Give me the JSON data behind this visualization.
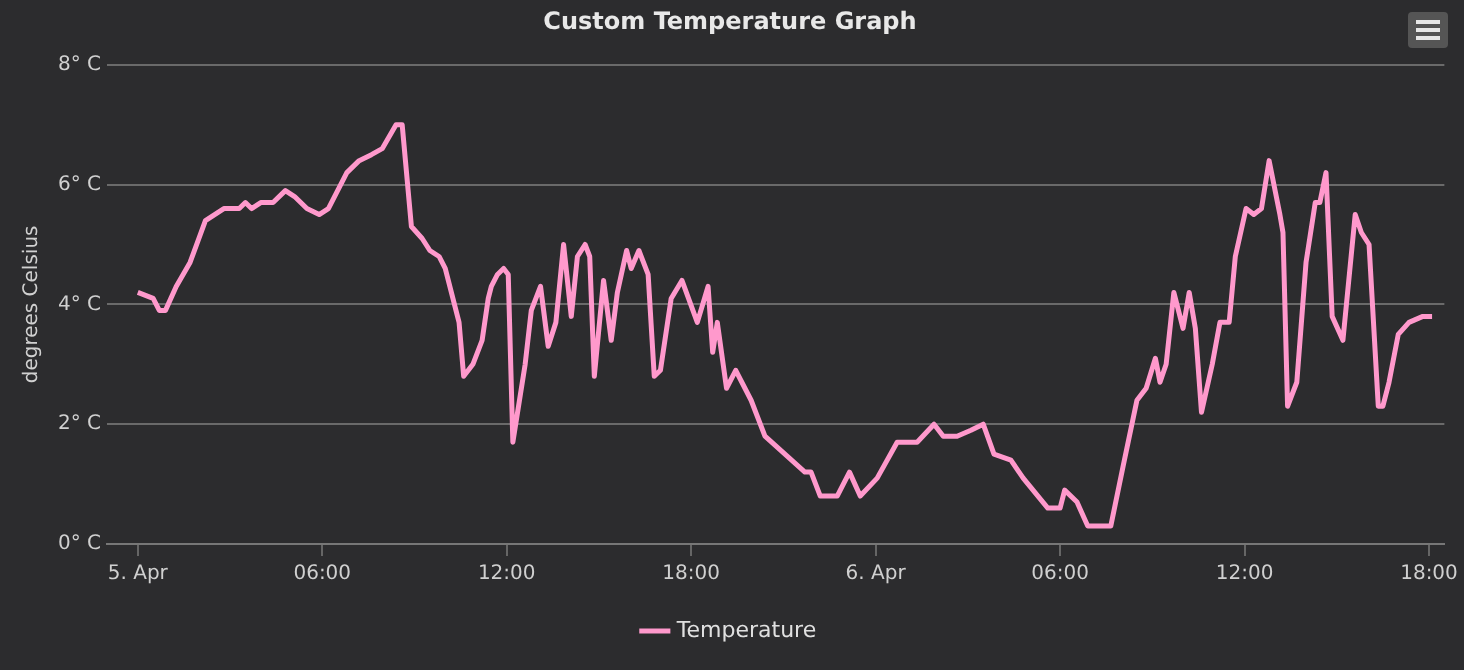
{
  "chart_data": {
    "type": "line",
    "title": "Custom Temperature Graph",
    "ylabel": "degrees Celsius",
    "xlim": [
      "--04-04T23:00",
      "--04-06T18:30"
    ],
    "ylim": [
      0,
      8
    ],
    "xticks": [
      {
        "value": "--04-05T00:00",
        "label": "5. Apr"
      },
      {
        "value": "--04-05T06:00",
        "label": "06:00"
      },
      {
        "value": "--04-05T12:00",
        "label": "12:00"
      },
      {
        "value": "--04-05T18:00",
        "label": "18:00"
      },
      {
        "value": "--04-06T00:00",
        "label": "6. Apr"
      },
      {
        "value": "--04-06T06:00",
        "label": "06:00"
      },
      {
        "value": "--04-06T12:00",
        "label": "12:00"
      },
      {
        "value": "--04-06T18:00",
        "label": "18:00"
      }
    ],
    "yticks": [
      {
        "value": 0,
        "label": "0° C"
      },
      {
        "value": 2,
        "label": "2° C"
      },
      {
        "value": 4,
        "label": "4° C"
      },
      {
        "value": 6,
        "label": "6° C"
      },
      {
        "value": 8,
        "label": "8° C"
      }
    ],
    "grid": "y",
    "legend": "bottom",
    "marker": "none",
    "line_style": "solid",
    "series": [
      {
        "name": "Temperature",
        "color": "#ff99cc",
        "x": [
          "--04-05T00:00",
          "--04-05T00:30",
          "--04-05T00:42",
          "--04-05T00:54",
          "--04-05T01:15",
          "--04-05T01:42",
          "--04-05T02:12",
          "--04-05T02:48",
          "--04-05T03:18",
          "--04-05T03:30",
          "--04-05T03:42",
          "--04-05T04:00",
          "--04-05T04:24",
          "--04-05T04:48",
          "--04-05T05:06",
          "--04-05T05:30",
          "--04-05T05:54",
          "--04-05T06:12",
          "--04-05T06:48",
          "--04-05T07:12",
          "--04-05T07:36",
          "--04-05T07:57",
          "--04-05T08:24",
          "--04-05T08:36",
          "--04-05T08:54",
          "--04-05T09:15",
          "--04-05T09:30",
          "--04-05T09:48",
          "--04-05T10:00",
          "--04-05T10:27",
          "--04-05T10:36",
          "--04-05T10:54",
          "--04-05T11:12",
          "--04-05T11:24",
          "--04-05T11:30",
          "--04-05T11:42",
          "--04-05T11:54",
          "--04-05T12:03",
          "--04-05T12:12",
          "--04-05T12:36",
          "--04-05T12:48",
          "--04-05T13:06",
          "--04-05T13:21",
          "--04-05T13:36",
          "--04-05T13:51",
          "--04-05T14:06",
          "--04-05T14:18",
          "--04-05T14:33",
          "--04-05T14:42",
          "--04-05T14:51",
          "--04-05T15:09",
          "--04-05T15:24",
          "--04-05T15:36",
          "--04-05T15:54",
          "--04-05T16:03",
          "--04-05T16:18",
          "--04-05T16:36",
          "--04-05T16:48",
          "--04-05T17:00",
          "--04-05T17:21",
          "--04-05T17:42",
          "--04-05T18:12",
          "--04-05T18:33",
          "--04-05T18:42",
          "--04-05T18:51",
          "--04-05T19:09",
          "--04-05T19:27",
          "--04-05T19:57",
          "--04-05T20:24",
          "--04-05T21:03",
          "--04-05T21:42",
          "--04-05T21:54",
          "--04-05T22:12",
          "--04-05T22:45",
          "--04-05T23:09",
          "--04-05T23:30",
          "--04-06T00:03",
          "--04-06T00:42",
          "--04-06T01:21",
          "--04-06T01:54",
          "--04-06T02:12",
          "--04-06T02:39",
          "--04-06T03:06",
          "--04-06T03:30",
          "--04-06T03:51",
          "--04-06T04:24",
          "--04-06T04:48",
          "--04-06T05:36",
          "--04-06T06:00",
          "--04-06T06:09",
          "--04-06T06:33",
          "--04-06T06:54",
          "--04-06T07:39",
          "--04-06T08:03",
          "--04-06T08:30",
          "--04-06T08:48",
          "--04-06T09:06",
          "--04-06T09:15",
          "--04-06T09:27",
          "--04-06T09:42",
          "--04-06T10:00",
          "--04-06T10:12",
          "--04-06T10:24",
          "--04-06T10:36",
          "--04-06T10:57",
          "--04-06T11:12",
          "--04-06T11:30",
          "--04-06T11:42",
          "--04-06T12:03",
          "--04-06T12:18",
          "--04-06T12:33",
          "--04-06T12:48",
          "--04-06T13:09",
          "--04-06T13:15",
          "--04-06T13:24",
          "--04-06T13:42",
          "--04-06T14:00",
          "--04-06T14:18",
          "--04-06T14:27",
          "--04-06T14:39",
          "--04-06T14:51",
          "--04-06T15:12",
          "--04-06T15:36",
          "--04-06T15:48",
          "--04-06T16:03",
          "--04-06T16:21",
          "--04-06T16:30",
          "--04-06T16:42",
          "--04-06T17:00",
          "--04-06T17:21",
          "--04-06T17:48",
          "--04-06T18:06"
        ],
        "values": [
          4.2,
          4.1,
          3.9,
          3.9,
          4.3,
          4.7,
          5.4,
          5.6,
          5.6,
          5.7,
          5.6,
          5.7,
          5.7,
          5.9,
          5.8,
          5.6,
          5.5,
          5.6,
          6.2,
          6.4,
          6.5,
          6.6,
          7.0,
          7.0,
          5.3,
          5.1,
          4.9,
          4.8,
          4.6,
          3.7,
          2.8,
          3.0,
          3.4,
          4.1,
          4.3,
          4.5,
          4.6,
          4.5,
          1.7,
          3.0,
          3.9,
          4.3,
          3.3,
          3.7,
          5.0,
          3.8,
          4.8,
          5.0,
          4.8,
          2.8,
          4.4,
          3.4,
          4.2,
          4.9,
          4.6,
          4.9,
          4.5,
          2.8,
          2.9,
          4.1,
          4.4,
          3.7,
          4.3,
          3.2,
          3.7,
          2.6,
          2.9,
          2.4,
          1.8,
          1.5,
          1.2,
          1.2,
          0.8,
          0.8,
          1.2,
          0.8,
          1.1,
          1.7,
          1.7,
          2.0,
          1.8,
          1.8,
          1.9,
          2.0,
          1.5,
          1.4,
          1.1,
          0.6,
          0.6,
          0.9,
          0.7,
          0.3,
          0.3,
          1.3,
          2.4,
          2.6,
          3.1,
          2.7,
          3.0,
          4.2,
          3.6,
          4.2,
          3.6,
          2.2,
          3.0,
          3.7,
          3.7,
          4.8,
          5.6,
          5.5,
          5.6,
          6.4,
          5.5,
          5.2,
          2.3,
          2.7,
          4.7,
          5.7,
          5.7,
          6.2,
          3.8,
          3.4,
          5.5,
          5.2,
          5.0,
          2.3,
          2.3,
          2.7,
          3.5,
          3.7,
          3.8,
          3.8
        ]
      }
    ]
  }
}
